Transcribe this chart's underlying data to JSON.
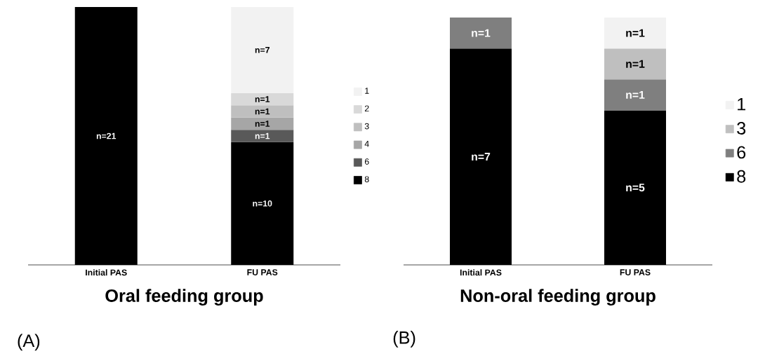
{
  "chart_data": [
    {
      "type": "bar",
      "stacked": true,
      "xlabel": "Oral feeding group",
      "categories": [
        "Initial PAS",
        "FU PAS"
      ],
      "legend": "right",
      "annotations": [
        "(A)"
      ],
      "series": [
        {
          "name": "8",
          "color": "#000000",
          "values": [
            21,
            10
          ],
          "value_labels": [
            "n=21",
            "n=10"
          ]
        },
        {
          "name": "6",
          "color": "#595959",
          "values": [
            null,
            1
          ],
          "value_labels": [
            null,
            "n=1"
          ]
        },
        {
          "name": "4",
          "color": "#a6a6a6",
          "values": [
            null,
            1
          ],
          "value_labels": [
            null,
            "n=1"
          ]
        },
        {
          "name": "3",
          "color": "#bfbfbf",
          "values": [
            null,
            1
          ],
          "value_labels": [
            null,
            "n=1"
          ]
        },
        {
          "name": "2",
          "color": "#d9d9d9",
          "values": [
            null,
            1
          ],
          "value_labels": [
            null,
            "n=1"
          ]
        },
        {
          "name": "1",
          "color": "#f2f2f2",
          "values": [
            null,
            7
          ],
          "value_labels": [
            null,
            "n=7"
          ]
        }
      ]
    },
    {
      "type": "bar",
      "stacked": true,
      "xlabel": "Non-oral feeding group",
      "categories": [
        "Initial PAS",
        "FU PAS"
      ],
      "legend": "right",
      "annotations": [
        "(B)"
      ],
      "series": [
        {
          "name": "8",
          "color": "#000000",
          "values": [
            7,
            5
          ],
          "value_labels": [
            "n=7",
            "n=5"
          ]
        },
        {
          "name": "6",
          "color": "#7f7f7f",
          "values": [
            1,
            1
          ],
          "value_labels": [
            "n=1",
            "n=1"
          ]
        },
        {
          "name": "3",
          "color": "#bfbfbf",
          "values": [
            null,
            1
          ],
          "value_labels": [
            null,
            "n=1"
          ]
        },
        {
          "name": "1",
          "color": "#f2f2f2",
          "values": [
            null,
            1
          ],
          "value_labels": [
            null,
            "n=1"
          ]
        }
      ]
    }
  ]
}
